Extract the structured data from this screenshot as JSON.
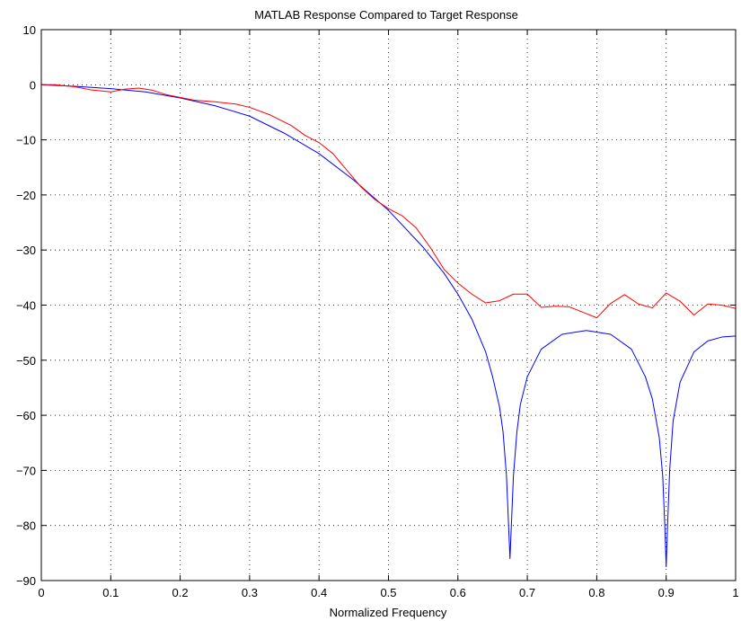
{
  "chart_data": {
    "type": "line",
    "title": "MATLAB Response Compared to Target Response",
    "xlabel": "Normalized Frequency",
    "ylabel": "",
    "xlim": [
      0,
      1
    ],
    "ylim": [
      -90,
      10
    ],
    "xticks": [
      0,
      0.1,
      0.2,
      0.3,
      0.4,
      0.5,
      0.6,
      0.7,
      0.8,
      0.9,
      1
    ],
    "yticks": [
      10,
      0,
      -10,
      -20,
      -30,
      -40,
      -50,
      -60,
      -70,
      -80,
      -90
    ],
    "xtick_labels": [
      "0",
      "0.1",
      "0.2",
      "0.3",
      "0.4",
      "0.5",
      "0.6",
      "0.7",
      "0.8",
      "0.9",
      "1"
    ],
    "ytick_labels": [
      "10",
      "0",
      "−10",
      "−20",
      "−30",
      "−40",
      "−50",
      "−60",
      "−70",
      "−80",
      "−90"
    ],
    "grid": true,
    "legend": "none",
    "series": [
      {
        "color": "#0000ff",
        "x": [
          0,
          0.05,
          0.1,
          0.15,
          0.2,
          0.25,
          0.3,
          0.35,
          0.4,
          0.45,
          0.5,
          0.55,
          0.58,
          0.6,
          0.62,
          0.64,
          0.65,
          0.66,
          0.665,
          0.67,
          0.672,
          0.674,
          0.675,
          0.676,
          0.678,
          0.68,
          0.685,
          0.69,
          0.7,
          0.72,
          0.75,
          0.785,
          0.82,
          0.85,
          0.87,
          0.88,
          0.89,
          0.895,
          0.898,
          0.9,
          0.902,
          0.905,
          0.91,
          0.92,
          0.94,
          0.96,
          0.98,
          1
        ],
        "y": [
          0,
          -0.3,
          -0.7,
          -1.3,
          -2.4,
          -3.8,
          -5.7,
          -8.8,
          -12.5,
          -17.3,
          -22.8,
          -29.5,
          -34.2,
          -38,
          -42.5,
          -48.5,
          -53,
          -58.5,
          -63,
          -71,
          -77,
          -83,
          -86,
          -83,
          -77,
          -71,
          -63,
          -58,
          -53,
          -48,
          -45.3,
          -44.6,
          -45.3,
          -48,
          -53,
          -57,
          -64,
          -71,
          -80,
          -87.5,
          -80,
          -70,
          -61,
          -54,
          -48.5,
          -46.5,
          -45.8,
          -45.6
        ]
      },
      {
        "color": "#ff0000",
        "x": [
          0,
          0.02,
          0.05,
          0.07,
          0.1,
          0.12,
          0.14,
          0.16,
          0.18,
          0.2,
          0.22,
          0.25,
          0.28,
          0.3,
          0.33,
          0.36,
          0.38,
          0.4,
          0.42,
          0.44,
          0.46,
          0.48,
          0.5,
          0.52,
          0.54,
          0.56,
          0.58,
          0.6,
          0.62,
          0.64,
          0.66,
          0.68,
          0.7,
          0.72,
          0.74,
          0.76,
          0.78,
          0.8,
          0.82,
          0.84,
          0.86,
          0.88,
          0.9,
          0.92,
          0.94,
          0.96,
          0.98,
          1
        ],
        "y": [
          0,
          0,
          -0.4,
          -0.9,
          -1.3,
          -0.8,
          -0.6,
          -1,
          -1.8,
          -2.3,
          -2.8,
          -3.1,
          -3.5,
          -4.1,
          -5.5,
          -7.4,
          -9.2,
          -10.5,
          -12.5,
          -15.5,
          -18.5,
          -20.8,
          -22.5,
          -23.8,
          -26,
          -29.5,
          -33.5,
          -36,
          -38,
          -39.6,
          -39.2,
          -38,
          -38,
          -40.4,
          -40.2,
          -40.3,
          -41.3,
          -42.3,
          -39.7,
          -38.1,
          -39.8,
          -40.5,
          -37.8,
          -39.3,
          -41.8,
          -39.8,
          -40,
          -40.6
        ]
      }
    ]
  }
}
